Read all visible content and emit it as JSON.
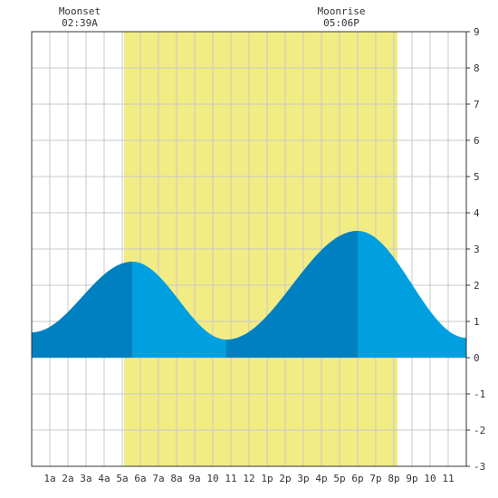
{
  "chart_data": {
    "type": "area",
    "title": "",
    "xlabel": "",
    "ylabel": "",
    "x_tick_labels": [
      "1a",
      "2a",
      "3a",
      "4a",
      "5a",
      "6a",
      "7a",
      "8a",
      "9a",
      "10",
      "11",
      "12",
      "1p",
      "2p",
      "3p",
      "4p",
      "5p",
      "6p",
      "7p",
      "8p",
      "9p",
      "10",
      "11"
    ],
    "xlim_hours": [
      0,
      24
    ],
    "ylim": [
      -3,
      9
    ],
    "y_ticks": [
      -3,
      -2,
      -1,
      0,
      1,
      2,
      3,
      4,
      5,
      6,
      7,
      8,
      9
    ],
    "grid": true,
    "daylight_hours": {
      "start": 5.1,
      "end": 20.2
    },
    "moon_events": [
      {
        "name": "Moonset",
        "time": "02:39A",
        "hour": 2.65
      },
      {
        "name": "Moonrise",
        "time": "05:06P",
        "hour": 17.1
      }
    ],
    "tide_extrema": [
      {
        "hour": 0.0,
        "height": 0.7
      },
      {
        "hour": 5.55,
        "height": 2.65
      },
      {
        "hour": 10.75,
        "height": 0.5
      },
      {
        "hour": 18.0,
        "height": 3.5
      },
      {
        "hour": 24.0,
        "height": 0.55
      }
    ],
    "shade_breaks_hours": [
      5.55,
      10.75,
      18.0
    ],
    "colors": {
      "rising": "#0080c0",
      "falling": "#00a0e0",
      "daylight": "#f2ec84",
      "grid": "#c8c8c8",
      "frame": "#333333"
    }
  }
}
